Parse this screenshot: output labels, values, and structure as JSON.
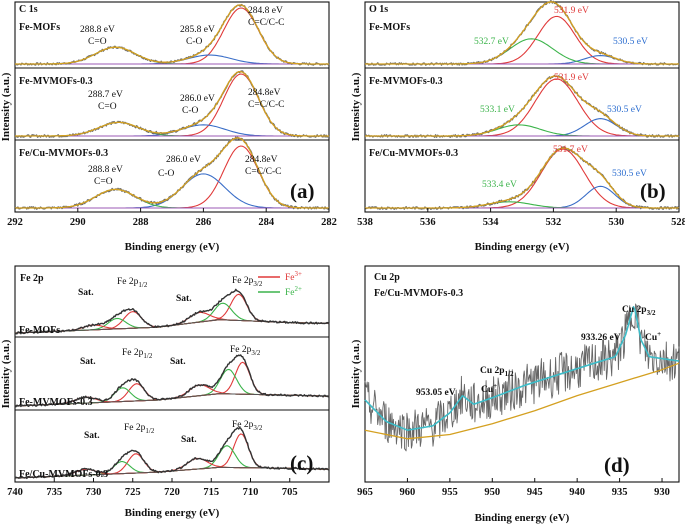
{
  "colors": {
    "data": "#6e6e6e",
    "fit": "#d4a020",
    "c_cc": "#e03a3a",
    "c_co": "#3a6ec8",
    "c_coo": "#3cb44b",
    "bg": "#9b59b6",
    "fe3": "#e03a3a",
    "fe2": "#3cb44b",
    "cu_data": "#666666",
    "cu_fit": "#3cbcc8",
    "cu_bg": "#d4a020",
    "ann_red": "#e03a3a",
    "ann_blue": "#2e6fd0",
    "ann_green": "#3cb44b"
  },
  "chart_data": [
    {
      "panel": "(a)",
      "type": "line",
      "title": "C 1s",
      "xlabel": "Binding energy (eV)",
      "ylabel": "Intensity (a.u.)",
      "xlim": [
        292,
        282
      ],
      "xticks": [
        292,
        290,
        288,
        286,
        284,
        282
      ],
      "rows": [
        {
          "sample": "Fe-MOFs",
          "peaks": [
            {
              "center": 284.8,
              "height": 1.0,
              "fwhm": 1.3,
              "color": "c_cc"
            },
            {
              "center": 285.8,
              "height": 0.16,
              "fwhm": 1.6,
              "color": "c_co"
            },
            {
              "center": 288.8,
              "height": 0.3,
              "fwhm": 1.5,
              "color": "c_coo"
            }
          ],
          "labels": [
            {
              "energy": "288.8 eV",
              "group": "C=O"
            },
            {
              "energy": "285.8 eV",
              "group": "C-O"
            },
            {
              "energy": "284.8 eV",
              "group": "C=C/C-C"
            }
          ]
        },
        {
          "sample": "Fe-MVMOFs-0.3",
          "peaks": [
            {
              "center": 284.8,
              "height": 1.0,
              "fwhm": 1.3,
              "color": "c_cc"
            },
            {
              "center": 286.0,
              "height": 0.18,
              "fwhm": 1.6,
              "color": "c_co"
            },
            {
              "center": 288.7,
              "height": 0.22,
              "fwhm": 1.5,
              "color": "c_coo"
            }
          ],
          "labels": [
            {
              "energy": "288.7 eV",
              "group": "C=O"
            },
            {
              "energy": "286.0 eV",
              "group": "C-O"
            },
            {
              "energy": "284.8eV",
              "group": "C=C/C-C"
            }
          ]
        },
        {
          "sample": "Fe/Cu-MVMOFs-0.3",
          "peaks": [
            {
              "center": 284.8,
              "height": 1.0,
              "fwhm": 1.3,
              "color": "c_cc"
            },
            {
              "center": 286.0,
              "height": 0.55,
              "fwhm": 1.6,
              "color": "c_co"
            },
            {
              "center": 288.8,
              "height": 0.3,
              "fwhm": 1.5,
              "color": "c_coo"
            }
          ],
          "labels": [
            {
              "energy": "288.8 eV",
              "group": "C=O"
            },
            {
              "energy": "286.0 eV",
              "group": "C-O"
            },
            {
              "energy": "284.8eV",
              "group": "C=C/C-C"
            }
          ]
        }
      ]
    },
    {
      "panel": "(b)",
      "type": "line",
      "title": "O 1s",
      "xlabel": "Binding energy (eV)",
      "ylabel": "Intensity (a.u.)",
      "xlim": [
        538,
        528
      ],
      "xticks": [
        538,
        536,
        534,
        532,
        530,
        528
      ],
      "rows": [
        {
          "sample": "Fe-MOFs",
          "peaks": [
            {
              "center": 531.9,
              "height": 0.85,
              "fwhm": 1.4,
              "color": "c_cc"
            },
            {
              "center": 530.5,
              "height": 0.15,
              "fwhm": 1.2,
              "color": "c_co"
            },
            {
              "center": 532.7,
              "height": 0.45,
              "fwhm": 1.6,
              "color": "c_coo"
            }
          ],
          "labels": [
            {
              "energy": "532.7 eV",
              "color": "ann_green"
            },
            {
              "energy": "531.9 eV",
              "color": "ann_red"
            },
            {
              "energy": "530.5 eV",
              "color": "ann_blue"
            }
          ]
        },
        {
          "sample": "Fe-MVMOFs-0.3",
          "peaks": [
            {
              "center": 531.9,
              "height": 0.92,
              "fwhm": 1.6,
              "color": "c_cc"
            },
            {
              "center": 530.5,
              "height": 0.28,
              "fwhm": 1.2,
              "color": "c_co"
            },
            {
              "center": 533.1,
              "height": 0.18,
              "fwhm": 1.6,
              "color": "c_coo"
            }
          ],
          "labels": [
            {
              "energy": "533.1 eV",
              "color": "ann_green"
            },
            {
              "energy": "531.9 eV",
              "color": "ann_red"
            },
            {
              "energy": "530.5 eV",
              "color": "ann_blue"
            }
          ]
        },
        {
          "sample": "Fe/Cu-MVMOFs-0.3",
          "peaks": [
            {
              "center": 531.7,
              "height": 0.95,
              "fwhm": 1.6,
              "color": "c_cc"
            },
            {
              "center": 530.5,
              "height": 0.35,
              "fwhm": 1.1,
              "color": "c_co"
            },
            {
              "center": 533.4,
              "height": 0.1,
              "fwhm": 1.6,
              "color": "c_coo"
            }
          ],
          "labels": [
            {
              "energy": "533.4 eV",
              "color": "ann_green"
            },
            {
              "energy": "531.7 eV",
              "color": "ann_red"
            },
            {
              "energy": "530.5 eV",
              "color": "ann_blue"
            }
          ]
        }
      ]
    },
    {
      "panel": "(c)",
      "type": "line",
      "title": "Fe 2p",
      "xlabel": "Binding energy (eV)",
      "ylabel": "Intensity (a.u.)",
      "xlim": [
        740,
        700
      ],
      "xticks": [
        740,
        735,
        730,
        725,
        720,
        715,
        710,
        705
      ],
      "legend": [
        {
          "label": "Fe",
          "sup": "3+",
          "color": "fe3"
        },
        {
          "label": "Fe",
          "sup": "2+",
          "color": "fe2"
        }
      ],
      "legend_position": "top-right",
      "rows": [
        {
          "sample": "Fe-MOFs",
          "baseline": [
            [
              740,
              0.0
            ],
            [
              722,
              0.12
            ],
            [
              714,
              0.28
            ],
            [
              705,
              0.22
            ],
            [
              700,
              0.2
            ]
          ],
          "peaks": [
            {
              "center": 711.5,
              "height": 0.55,
              "fwhm": 2.4,
              "color": "fe3"
            },
            {
              "center": 713.5,
              "height": 0.35,
              "fwhm": 2.6,
              "color": "fe2"
            },
            {
              "center": 716.5,
              "height": 0.2,
              "fwhm": 3.0,
              "color": "fe3"
            },
            {
              "center": 725.0,
              "height": 0.35,
              "fwhm": 2.6,
              "color": "fe3"
            },
            {
              "center": 727.0,
              "height": 0.22,
              "fwhm": 2.6,
              "color": "fe2"
            },
            {
              "center": 730.0,
              "height": 0.1,
              "fwhm": 3.0,
              "color": "fe3"
            }
          ],
          "labels": [
            {
              "text": "Sat.",
              "at": 731
            },
            {
              "text": "Fe 2p",
              "sub": "1/2",
              "at": 725.5
            },
            {
              "text": "Sat.",
              "at": 718.5
            },
            {
              "text": "Fe 2p",
              "sub": "3/2",
              "at": 711.5
            }
          ]
        },
        {
          "sample": "Fe-MVMOFs-0.3",
          "baseline": [
            [
              740,
              0.0
            ],
            [
              722,
              0.12
            ],
            [
              714,
              0.25
            ],
            [
              705,
              0.22
            ],
            [
              700,
              0.2
            ]
          ],
          "peaks": [
            {
              "center": 711.0,
              "height": 0.65,
              "fwhm": 2.2,
              "color": "fe3"
            },
            {
              "center": 712.8,
              "height": 0.5,
              "fwhm": 2.4,
              "color": "fe2"
            },
            {
              "center": 716.5,
              "height": 0.22,
              "fwhm": 3.0,
              "color": "fe3"
            },
            {
              "center": 724.5,
              "height": 0.35,
              "fwhm": 2.4,
              "color": "fe3"
            },
            {
              "center": 726.3,
              "height": 0.28,
              "fwhm": 2.4,
              "color": "fe2"
            },
            {
              "center": 731.0,
              "height": 0.12,
              "fwhm": 3.0,
              "color": "fe3"
            }
          ],
          "labels": [
            {
              "text": "Sat.",
              "at": 730.5
            },
            {
              "text": "Fe 2p",
              "sub": "1/2",
              "at": 725
            },
            {
              "text": "Sat.",
              "at": 718.5
            },
            {
              "text": "Fe 2p",
              "sub": "3/2",
              "at": 711.5
            }
          ]
        },
        {
          "sample": "Fe/Cu-MVMOFs-0.3",
          "baseline": [
            [
              740,
              0.0
            ],
            [
              722,
              0.12
            ],
            [
              714,
              0.22
            ],
            [
              705,
              0.2
            ],
            [
              700,
              0.18
            ]
          ],
          "peaks": [
            {
              "center": 711.2,
              "height": 0.7,
              "fwhm": 2.2,
              "color": "fe3"
            },
            {
              "center": 713.0,
              "height": 0.45,
              "fwhm": 2.4,
              "color": "fe2"
            },
            {
              "center": 716.8,
              "height": 0.22,
              "fwhm": 3.0,
              "color": "fe3"
            },
            {
              "center": 724.6,
              "height": 0.4,
              "fwhm": 2.4,
              "color": "fe3"
            },
            {
              "center": 726.4,
              "height": 0.25,
              "fwhm": 2.4,
              "color": "fe2"
            },
            {
              "center": 731.0,
              "height": 0.12,
              "fwhm": 3.0,
              "color": "fe3"
            }
          ],
          "labels": [
            {
              "text": "Sat.",
              "at": 731
            },
            {
              "text": "Fe 2p",
              "sub": "1/2",
              "at": 725
            },
            {
              "text": "Sat.",
              "at": 718.5
            },
            {
              "text": "Fe 2p",
              "sub": "3/2",
              "at": 711.5
            }
          ]
        }
      ]
    },
    {
      "panel": "(d)",
      "type": "line",
      "title": "Cu 2p",
      "sample": "Fe/Cu-MVMOFs-0.3",
      "xlabel": "Binding energy (eV)",
      "ylabel": "Intensity (a.u.)",
      "xlim": [
        965,
        928
      ],
      "xticks": [
        965,
        960,
        955,
        950,
        945,
        940,
        935,
        930
      ],
      "ylim": [
        0,
        1
      ],
      "background": [
        [
          965,
          0.24
        ],
        [
          960,
          0.2
        ],
        [
          955,
          0.22
        ],
        [
          950,
          0.27
        ],
        [
          945,
          0.33
        ],
        [
          940,
          0.4
        ],
        [
          935,
          0.46
        ],
        [
          930,
          0.52
        ],
        [
          928,
          0.55
        ]
      ],
      "fit": [
        [
          965,
          0.38
        ],
        [
          962.5,
          0.28
        ],
        [
          960,
          0.24
        ],
        [
          957,
          0.26
        ],
        [
          955,
          0.32
        ],
        [
          953.5,
          0.4
        ],
        [
          952.2,
          0.36
        ],
        [
          950,
          0.39
        ],
        [
          946,
          0.45
        ],
        [
          942,
          0.5
        ],
        [
          938,
          0.55
        ],
        [
          935.5,
          0.58
        ],
        [
          934.3,
          0.68
        ],
        [
          933.3,
          0.82
        ],
        [
          932.5,
          0.66
        ],
        [
          931.5,
          0.58
        ],
        [
          928,
          0.56
        ]
      ],
      "noise": 0.1,
      "labels": [
        {
          "text": "Cu 2p",
          "sub": "3/2"
        },
        {
          "text": "933.26 eV"
        },
        {
          "text": "Cu",
          "sup": "+"
        },
        {
          "text": "Cu 2p",
          "sub": "1/2"
        },
        {
          "text": "953.05 eV"
        },
        {
          "text": "Cu",
          "sup": "+"
        }
      ]
    }
  ]
}
